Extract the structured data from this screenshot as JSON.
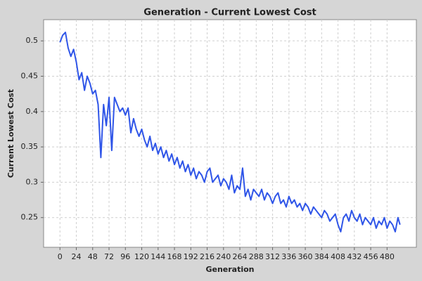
{
  "chart_data": {
    "type": "line",
    "title": "Generation - Current Lowest Cost",
    "x_label": "Generation",
    "y_label": "Current Lowest Cost",
    "x": [
      0,
      4,
      8,
      12,
      16,
      20,
      24,
      28,
      32,
      36,
      40,
      44,
      48,
      52,
      56,
      60,
      64,
      68,
      72,
      76,
      80,
      84,
      88,
      92,
      96,
      100,
      104,
      108,
      112,
      116,
      120,
      124,
      128,
      132,
      136,
      140,
      144,
      148,
      152,
      156,
      160,
      164,
      168,
      172,
      176,
      180,
      184,
      188,
      192,
      196,
      200,
      204,
      208,
      212,
      216,
      220,
      224,
      228,
      232,
      236,
      240,
      244,
      248,
      252,
      256,
      260,
      264,
      268,
      272,
      276,
      280,
      284,
      288,
      292,
      296,
      300,
      304,
      308,
      312,
      316,
      320,
      324,
      328,
      332,
      336,
      340,
      344,
      348,
      352,
      356,
      360,
      364,
      368,
      372,
      376,
      380,
      384,
      388,
      392,
      396,
      400,
      404,
      408,
      412,
      416,
      420,
      424,
      428,
      432,
      436,
      440,
      444,
      448,
      452,
      456,
      460,
      464,
      468,
      472,
      476,
      480,
      484,
      488,
      492,
      496,
      499
    ],
    "series": [
      {
        "name": "Current Lowest Cost",
        "color": "#2f55e8",
        "values": [
          0.498,
          0.508,
          0.512,
          0.49,
          0.478,
          0.488,
          0.47,
          0.445,
          0.455,
          0.43,
          0.45,
          0.44,
          0.425,
          0.43,
          0.41,
          0.335,
          0.41,
          0.38,
          0.42,
          0.345,
          0.42,
          0.41,
          0.4,
          0.405,
          0.395,
          0.405,
          0.37,
          0.39,
          0.375,
          0.365,
          0.375,
          0.36,
          0.35,
          0.365,
          0.345,
          0.355,
          0.34,
          0.35,
          0.335,
          0.345,
          0.33,
          0.34,
          0.325,
          0.335,
          0.32,
          0.33,
          0.315,
          0.325,
          0.31,
          0.32,
          0.305,
          0.315,
          0.31,
          0.3,
          0.315,
          0.32,
          0.3,
          0.305,
          0.31,
          0.295,
          0.305,
          0.3,
          0.29,
          0.31,
          0.285,
          0.295,
          0.29,
          0.32,
          0.28,
          0.29,
          0.275,
          0.29,
          0.285,
          0.28,
          0.29,
          0.275,
          0.285,
          0.28,
          0.27,
          0.28,
          0.285,
          0.27,
          0.275,
          0.265,
          0.28,
          0.27,
          0.275,
          0.265,
          0.27,
          0.26,
          0.27,
          0.265,
          0.255,
          0.265,
          0.26,
          0.255,
          0.25,
          0.26,
          0.255,
          0.245,
          0.25,
          0.255,
          0.24,
          0.23,
          0.25,
          0.255,
          0.245,
          0.26,
          0.25,
          0.245,
          0.255,
          0.24,
          0.25,
          0.245,
          0.24,
          0.25,
          0.235,
          0.245,
          0.24,
          0.25,
          0.235,
          0.245,
          0.24,
          0.23,
          0.25,
          0.24
        ]
      }
    ],
    "xlim": [
      -24,
      523
    ],
    "ylim": [
      0.208,
      0.53
    ],
    "xticks": [
      0,
      24,
      48,
      72,
      96,
      120,
      144,
      168,
      192,
      216,
      240,
      264,
      288,
      312,
      336,
      360,
      384,
      408,
      432,
      456,
      480
    ],
    "yticks": [
      0.25,
      0.3,
      0.35,
      0.4,
      0.45,
      0.5
    ],
    "grid": true
  }
}
